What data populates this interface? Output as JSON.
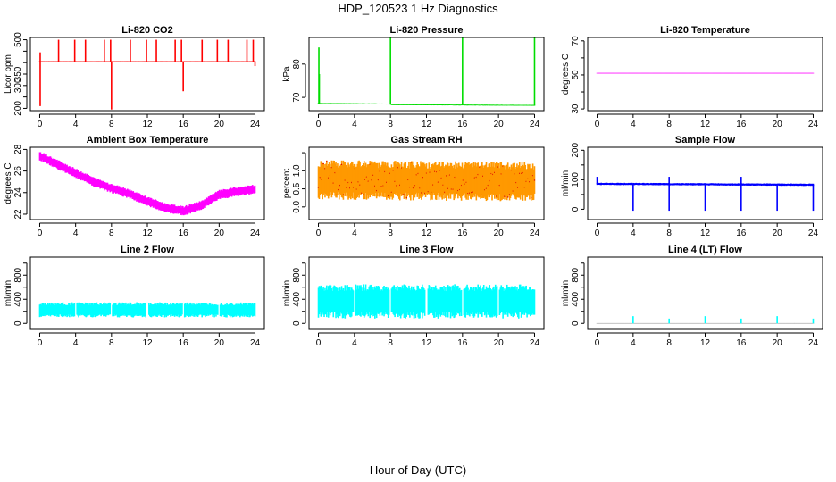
{
  "main_title": "HDP_120523  1 Hz Diagnostics",
  "x_label": "Hour of Day (UTC)",
  "chart_data": [
    {
      "type": "line",
      "title": "Li-820 CO2",
      "ylabel": "Licor ppm",
      "color": "#ff0000",
      "xlim": [
        0,
        24
      ],
      "ylim": [
        190,
        510
      ],
      "xticks": [
        0,
        4,
        8,
        12,
        16,
        20,
        24
      ],
      "yticks": [
        200,
        250,
        300,
        350,
        400,
        450,
        500
      ],
      "ytick_labels": [
        "200",
        "",
        "300",
        "350",
        "",
        "",
        "500"
      ],
      "baseline": [
        [
          0,
          405
        ],
        [
          24,
          405
        ]
      ],
      "band": 1.5,
      "spikes": [
        [
          0.05,
          210
        ],
        [
          0.05,
          445
        ],
        [
          2.1,
          500
        ],
        [
          3.9,
          500
        ],
        [
          5.1,
          500
        ],
        [
          7.2,
          500
        ],
        [
          7.9,
          500
        ],
        [
          8.0,
          195
        ],
        [
          10.1,
          500
        ],
        [
          11.9,
          500
        ],
        [
          13.0,
          500
        ],
        [
          15.1,
          500
        ],
        [
          15.8,
          500
        ],
        [
          16.0,
          275
        ],
        [
          18.1,
          500
        ],
        [
          19.8,
          500
        ],
        [
          21.0,
          500
        ],
        [
          23.1,
          500
        ],
        [
          23.8,
          500
        ],
        [
          24.0,
          385
        ]
      ]
    },
    {
      "type": "line",
      "title": "Li-820 Pressure",
      "ylabel": "kPa",
      "color": "#00dd00",
      "xlim": [
        0,
        24
      ],
      "ylim": [
        66,
        88
      ],
      "xticks": [
        0,
        4,
        8,
        12,
        16,
        20,
        24
      ],
      "yticks": [
        70,
        80
      ],
      "ytick_labels": [
        "70",
        "80"
      ],
      "baseline": [
        [
          0,
          68.2
        ],
        [
          8,
          68.0
        ],
        [
          8.1,
          67.8
        ],
        [
          24,
          67.6
        ]
      ],
      "band": 0.15,
      "spikes": [
        [
          0.05,
          85
        ],
        [
          0.1,
          77
        ],
        [
          8.0,
          88
        ],
        [
          16.0,
          88
        ],
        [
          24.0,
          88
        ]
      ]
    },
    {
      "type": "line",
      "title": "Li-820 Temperature",
      "ylabel": "degrees C",
      "color": "#ff00ff",
      "xlim": [
        0,
        24
      ],
      "ylim": [
        29,
        72
      ],
      "xticks": [
        0,
        4,
        8,
        12,
        16,
        20,
        24
      ],
      "yticks": [
        30,
        40,
        50,
        60,
        70
      ],
      "ytick_labels": [
        "30",
        "",
        "50",
        "",
        "70"
      ],
      "baseline": [
        [
          0,
          51
        ],
        [
          24,
          51
        ]
      ],
      "band": 0,
      "spikes": []
    },
    {
      "type": "area",
      "title": "Ambient Box Temperature",
      "ylabel": "degrees C",
      "color": "#ff00ff",
      "xlim": [
        0,
        24
      ],
      "ylim": [
        21.5,
        28.2
      ],
      "xticks": [
        0,
        4,
        8,
        12,
        16,
        20,
        24
      ],
      "yticks": [
        22,
        24,
        26,
        28
      ],
      "ytick_labels": [
        "22",
        "24",
        "26",
        "28"
      ],
      "baseline": [
        [
          0,
          27.4
        ],
        [
          2,
          26.6
        ],
        [
          4,
          25.8
        ],
        [
          6,
          25.0
        ],
        [
          8,
          24.4
        ],
        [
          10,
          23.9
        ],
        [
          12,
          23.2
        ],
        [
          14,
          22.6
        ],
        [
          16,
          22.3
        ],
        [
          18,
          22.8
        ],
        [
          20,
          23.8
        ],
        [
          22,
          24.1
        ],
        [
          24,
          24.3
        ]
      ],
      "band": 0.45,
      "spikes": []
    },
    {
      "type": "area",
      "title": "Gas Stream RH",
      "ylabel": "percent",
      "color": "#ff9900",
      "color2": "#dd0000",
      "xlim": [
        0,
        24
      ],
      "ylim": [
        -0.35,
        1.65
      ],
      "xticks": [
        0,
        4,
        8,
        12,
        16,
        20,
        24
      ],
      "yticks": [
        0.0,
        0.5,
        1.0,
        1.5
      ],
      "ytick_labels": [
        "0.0",
        "0.5",
        "1.0",
        ""
      ],
      "baseline": [
        [
          0,
          0.75
        ],
        [
          24,
          0.7
        ]
      ],
      "band": 0.55,
      "spikes": []
    },
    {
      "type": "line",
      "title": "Sample Flow",
      "ylabel": "ml/min",
      "color": "#0000ff",
      "xlim": [
        0,
        24
      ],
      "ylim": [
        -35,
        210
      ],
      "xticks": [
        0,
        4,
        8,
        12,
        16,
        20,
        24
      ],
      "yticks": [
        0,
        50,
        100,
        150,
        200
      ],
      "ytick_labels": [
        "0",
        "",
        "100",
        "",
        "200"
      ],
      "baseline": [
        [
          0,
          86
        ],
        [
          24,
          83
        ]
      ],
      "band": 4,
      "spikes": [
        [
          0.0,
          110
        ],
        [
          4.0,
          -5
        ],
        [
          8.0,
          110
        ],
        [
          8.0,
          -5
        ],
        [
          12.0,
          -5
        ],
        [
          16.0,
          110
        ],
        [
          16.0,
          -5
        ],
        [
          20.0,
          -5
        ],
        [
          24.0,
          -5
        ]
      ]
    },
    {
      "type": "area",
      "title": "Line 2 Flow",
      "ylabel": "ml/min",
      "color": "#00ffff",
      "xlim": [
        0,
        24
      ],
      "ylim": [
        -100,
        1100
      ],
      "xticks": [
        0,
        4,
        8,
        12,
        16,
        20,
        24
      ],
      "yticks": [
        0,
        200,
        400,
        600,
        800,
        1000
      ],
      "ytick_labels": [
        "0",
        "",
        "400",
        "",
        "800",
        ""
      ],
      "baseline": [
        [
          0,
          225
        ],
        [
          24,
          225
        ]
      ],
      "band": 125,
      "gaps": [
        4,
        8,
        12,
        16,
        20,
        24
      ],
      "spikes": []
    },
    {
      "type": "area",
      "title": "Line 3 Flow",
      "ylabel": "ml/min",
      "color": "#00ffff",
      "xlim": [
        0,
        24
      ],
      "ylim": [
        -100,
        1100
      ],
      "xticks": [
        0,
        4,
        8,
        12,
        16,
        20,
        24
      ],
      "yticks": [
        0,
        200,
        400,
        600,
        800,
        1000
      ],
      "ytick_labels": [
        "0",
        "",
        "400",
        "",
        "800",
        ""
      ],
      "baseline": [
        [
          0,
          365
        ],
        [
          24,
          365
        ]
      ],
      "band": 285,
      "gaps": [
        4,
        8,
        12,
        16,
        20,
        24
      ],
      "spikes": []
    },
    {
      "type": "line",
      "title": "Line 4 (LT) Flow",
      "ylabel": "ml/min",
      "color": "#aaaaaa",
      "color2": "#00ffff",
      "xlim": [
        0,
        24
      ],
      "ylim": [
        -100,
        1100
      ],
      "xticks": [
        0,
        4,
        8,
        12,
        16,
        20,
        24
      ],
      "yticks": [
        0,
        200,
        400,
        600,
        800,
        1000
      ],
      "ytick_labels": [
        "0",
        "",
        "400",
        "",
        "800",
        ""
      ],
      "baseline": [
        [
          0,
          0
        ],
        [
          24,
          0
        ]
      ],
      "band": 0,
      "spikes": [
        [
          4.0,
          120
        ],
        [
          8.0,
          80
        ],
        [
          12.0,
          120
        ],
        [
          16.0,
          80
        ],
        [
          20.0,
          120
        ],
        [
          24.0,
          80
        ]
      ]
    }
  ]
}
